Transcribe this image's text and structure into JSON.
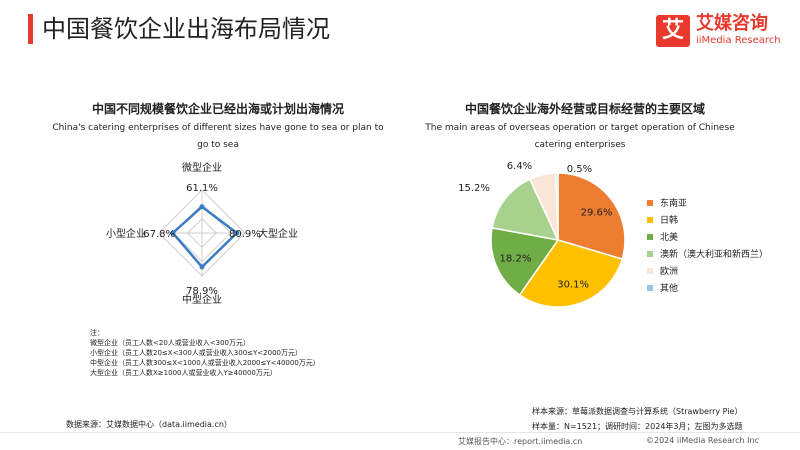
{
  "header": {
    "title": "中国餐饮企业出海布局情况",
    "logo_cn": "艾媒咨询",
    "logo_en": "iiMedia Research",
    "logo_mark": "艾"
  },
  "colors": {
    "accent": "#e8392c",
    "radar_line": "#3a7cc1"
  },
  "left_panel": {
    "title_cn": "中国不同规模餐饮企业已经出海或计划出海情况",
    "title_en": "China's catering enterprises of different sizes have gone to sea or plan to go to sea"
  },
  "right_panel": {
    "title_cn": "中国餐饮企业海外经营或目标经营的主要区域",
    "title_en": "The main areas of overseas operation or target operation of Chinese catering enterprises"
  },
  "chart_data": [
    {
      "type": "radar",
      "axis_max": 100,
      "categories": [
        "微型企业",
        "大型企业",
        "中型企业",
        "小型企业"
      ],
      "values": [
        61.1,
        80.9,
        78.9,
        67.8
      ],
      "value_labels": [
        "61.1%",
        "80.9%",
        "78.9%",
        "67.8%"
      ]
    },
    {
      "type": "pie",
      "categories": [
        "东南亚",
        "日韩",
        "北美",
        "澳新（澳大利亚和新西兰）",
        "欧洲",
        "其他"
      ],
      "values": [
        29.6,
        30.1,
        18.2,
        15.2,
        6.4,
        0.5
      ],
      "value_labels": [
        "29.6%",
        "30.1%",
        "18.2%",
        "15.2%",
        "6.4%",
        "0.5%"
      ],
      "colors": [
        "#ed7d31",
        "#ffc000",
        "#70ad47",
        "#a9d18e",
        "#fbe5d6",
        "#9dc3e6"
      ],
      "legend_position": "right"
    }
  ],
  "notes": {
    "heading": "注：",
    "lines": [
      "微型企业（员工人数<20人或营业收入<300万元）",
      "小型企业（员工人数20≤X<300人或营业收入300≤Y<2000万元）",
      "中型企业（员工人数300≤X<1000人或营业收入2000≤Y<40000万元）",
      "大型企业（员工人数X≥1000人或营业收入Y≥40000万元）"
    ]
  },
  "sources": {
    "data_source": "数据来源：艾媒数据中心（data.iimedia.cn）",
    "sample_source": "样本来源：草莓派数据调查与计算系统（Strawberry Pie）",
    "sample_size": "样本量：N=1521；调研时间：2024年3月；左图为多选题"
  },
  "footer": {
    "left": "艾媒报告中心：report.iimedia.cn",
    "right": "©2024  iiMedia Research  Inc"
  }
}
